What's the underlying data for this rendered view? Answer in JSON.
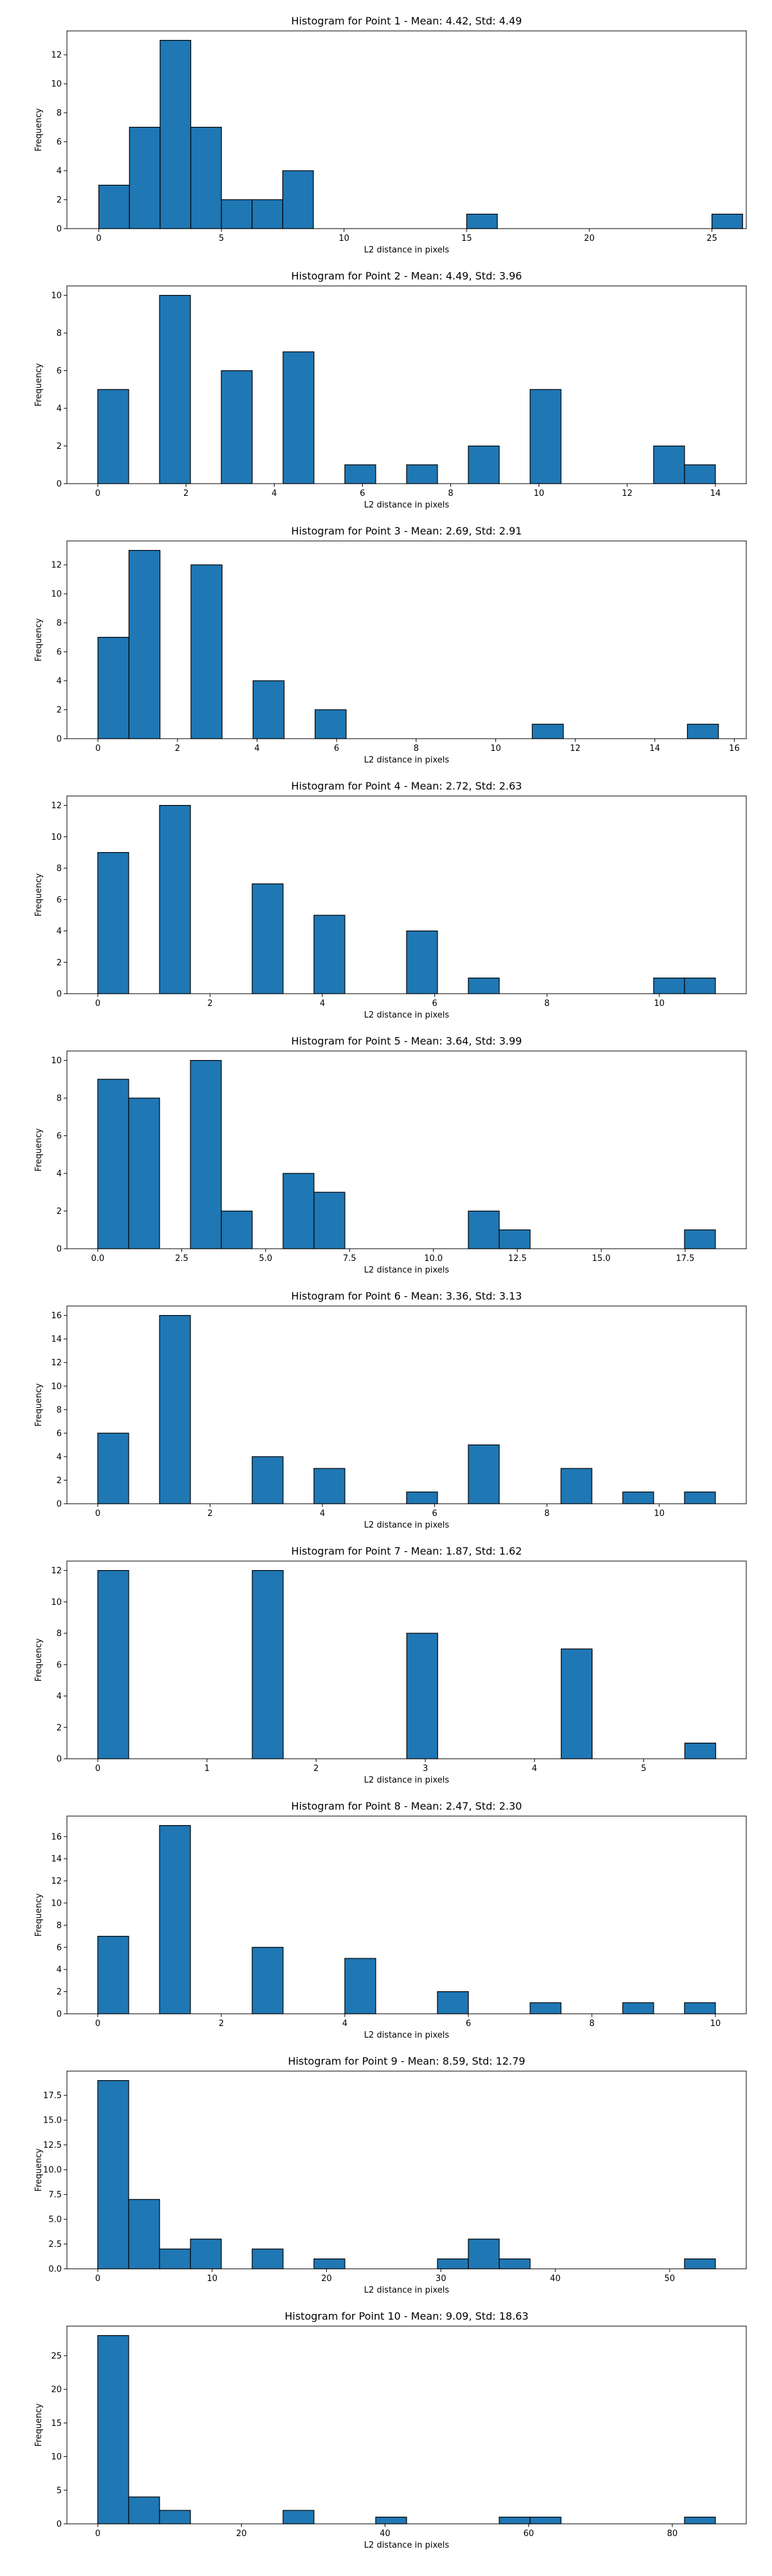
{
  "chart_data": [
    {
      "type": "bar",
      "title": "Histogram for Point 1 - Mean: 4.42, Std: 4.49",
      "xlabel": "L2 distance in pixels",
      "ylabel": "Frequency",
      "xlim": [
        -1.3,
        26.4
      ],
      "ylim": [
        0,
        13.65
      ],
      "xticks": [
        0,
        5,
        10,
        15,
        20,
        25
      ],
      "xtick_labels": [
        "0",
        "5",
        "10",
        "15",
        "20",
        "25"
      ],
      "yticks": [
        0,
        2,
        4,
        6,
        8,
        10,
        12
      ],
      "ytick_labels": [
        "0",
        "2",
        "4",
        "6",
        "8",
        "10",
        "12"
      ],
      "bin_edges": [
        0,
        1.25,
        2.5,
        3.75,
        5.0,
        6.25,
        7.5,
        8.75,
        10.0,
        11.25,
        12.5,
        13.75,
        15.0,
        16.25,
        17.5,
        18.75,
        20.0,
        21.25,
        22.5,
        23.75,
        25.0,
        26.25
      ],
      "values": [
        3,
        7,
        13,
        7,
        2,
        2,
        4,
        0,
        0,
        0,
        0,
        0,
        1,
        0,
        0,
        0,
        0,
        0,
        0,
        0,
        1
      ],
      "grid": false,
      "bar_color": "#1f77b4",
      "edge_color": "#000000"
    },
    {
      "type": "bar",
      "title": "Histogram for Point 2 - Mean: 4.49, Std: 3.96",
      "xlabel": "L2 distance in pixels",
      "ylabel": "Frequency",
      "xlim": [
        -0.7,
        14.7
      ],
      "ylim": [
        0,
        10.5
      ],
      "xticks": [
        0,
        2,
        4,
        6,
        8,
        10,
        12,
        14
      ],
      "xtick_labels": [
        "0",
        "2",
        "4",
        "6",
        "8",
        "10",
        "12",
        "14"
      ],
      "yticks": [
        0,
        2,
        4,
        6,
        8,
        10
      ],
      "ytick_labels": [
        "0",
        "2",
        "4",
        "6",
        "8",
        "10"
      ],
      "bin_edges": [
        0,
        0.7,
        1.4,
        2.1,
        2.8,
        3.5,
        4.2,
        4.9,
        5.6,
        6.3,
        7.0,
        7.7,
        8.4,
        9.1,
        9.8,
        10.5,
        11.2,
        11.9,
        12.6,
        13.3,
        14.0
      ],
      "values": [
        5,
        0,
        10,
        0,
        6,
        0,
        7,
        0,
        1,
        0,
        1,
        0,
        2,
        0,
        5,
        0,
        0,
        0,
        2,
        1
      ],
      "grid": false,
      "bar_color": "#1f77b4",
      "edge_color": "#000000"
    },
    {
      "type": "bar",
      "title": "Histogram for Point 3 - Mean: 2.69, Std: 2.91",
      "xlabel": "L2 distance in pixels",
      "ylabel": "Frequency",
      "xlim": [
        -0.78,
        16.3
      ],
      "ylim": [
        0,
        13.65
      ],
      "xticks": [
        0,
        2,
        4,
        6,
        8,
        10,
        12,
        14,
        16
      ],
      "xtick_labels": [
        "0",
        "2",
        "4",
        "6",
        "8",
        "10",
        "12",
        "14",
        "16"
      ],
      "yticks": [
        0,
        2,
        4,
        6,
        8,
        10,
        12
      ],
      "ytick_labels": [
        "0",
        "2",
        "4",
        "6",
        "8",
        "10",
        "12"
      ],
      "bin_edges": [
        0,
        0.78,
        1.56,
        2.34,
        3.12,
        3.9,
        4.68,
        5.46,
        6.24,
        7.02,
        7.8,
        8.58,
        9.36,
        10.14,
        10.92,
        11.7,
        12.48,
        13.26,
        14.04,
        14.82,
        15.6
      ],
      "values": [
        7,
        13,
        0,
        12,
        0,
        4,
        0,
        2,
        0,
        0,
        0,
        0,
        0,
        0,
        1,
        0,
        0,
        0,
        0,
        1
      ],
      "grid": false,
      "bar_color": "#1f77b4",
      "edge_color": "#000000"
    },
    {
      "type": "bar",
      "title": "Histogram for Point 4 - Mean: 2.72, Std: 2.63",
      "xlabel": "L2 distance in pixels",
      "ylabel": "Frequency",
      "xlim": [
        -0.55,
        11.55
      ],
      "ylim": [
        0,
        12.6
      ],
      "xticks": [
        0,
        2,
        4,
        6,
        8,
        10
      ],
      "xtick_labels": [
        "0",
        "2",
        "4",
        "6",
        "8",
        "10"
      ],
      "yticks": [
        0,
        2,
        4,
        6,
        8,
        10,
        12
      ],
      "ytick_labels": [
        "0",
        "2",
        "4",
        "6",
        "8",
        "10",
        "12"
      ],
      "bin_edges": [
        0,
        0.55,
        1.1,
        1.65,
        2.2,
        2.75,
        3.3,
        3.85,
        4.4,
        4.95,
        5.5,
        6.05,
        6.6,
        7.15,
        7.7,
        8.25,
        8.8,
        9.35,
        9.9,
        10.45,
        11.0
      ],
      "values": [
        9,
        0,
        12,
        0,
        0,
        7,
        0,
        5,
        0,
        0,
        4,
        0,
        1,
        0,
        0,
        0,
        0,
        0,
        1,
        1
      ],
      "grid": false,
      "bar_color": "#1f77b4",
      "edge_color": "#000000"
    },
    {
      "type": "bar",
      "title": "Histogram for Point 5 - Mean: 3.64, Std: 3.99",
      "xlabel": "L2 distance in pixels",
      "ylabel": "Frequency",
      "xlim": [
        -0.92,
        19.32
      ],
      "ylim": [
        0,
        10.5
      ],
      "xticks": [
        0,
        2.5,
        5,
        7.5,
        10,
        12.5,
        15,
        17.5
      ],
      "xtick_labels": [
        "0.0",
        "2.5",
        "5.0",
        "7.5",
        "10.0",
        "12.5",
        "15.0",
        "17.5"
      ],
      "yticks": [
        0,
        2,
        4,
        6,
        8,
        10
      ],
      "ytick_labels": [
        "0",
        "2",
        "4",
        "6",
        "8",
        "10"
      ],
      "bin_edges": [
        0,
        0.92,
        1.84,
        2.76,
        3.68,
        4.6,
        5.52,
        6.44,
        7.36,
        8.28,
        9.2,
        10.12,
        11.04,
        11.96,
        12.88,
        13.8,
        14.72,
        15.64,
        16.56,
        17.48,
        18.4
      ],
      "values": [
        9,
        8,
        0,
        10,
        2,
        0,
        4,
        3,
        0,
        0,
        0,
        0,
        2,
        1,
        0,
        0,
        0,
        0,
        0,
        1
      ],
      "grid": false,
      "bar_color": "#1f77b4",
      "edge_color": "#000000"
    },
    {
      "type": "bar",
      "title": "Histogram for Point 6 - Mean: 3.36, Std: 3.13",
      "xlabel": "L2 distance in pixels",
      "ylabel": "Frequency",
      "xlim": [
        -0.55,
        11.55
      ],
      "ylim": [
        0,
        16.8
      ],
      "xticks": [
        0,
        2,
        4,
        6,
        8,
        10
      ],
      "xtick_labels": [
        "0",
        "2",
        "4",
        "6",
        "8",
        "10"
      ],
      "yticks": [
        0,
        2,
        4,
        6,
        8,
        10,
        12,
        14,
        16
      ],
      "ytick_labels": [
        "0",
        "2",
        "4",
        "6",
        "8",
        "10",
        "12",
        "14",
        "16"
      ],
      "bin_edges": [
        0,
        0.55,
        1.1,
        1.65,
        2.2,
        2.75,
        3.3,
        3.85,
        4.4,
        4.95,
        5.5,
        6.05,
        6.6,
        7.15,
        7.7,
        8.25,
        8.8,
        9.35,
        9.9,
        10.45,
        11.0
      ],
      "values": [
        6,
        0,
        16,
        0,
        0,
        4,
        0,
        3,
        0,
        0,
        1,
        0,
        5,
        0,
        0,
        3,
        0,
        1,
        0,
        1
      ],
      "grid": false,
      "bar_color": "#1f77b4",
      "edge_color": "#000000"
    },
    {
      "type": "bar",
      "title": "Histogram for Point 7 - Mean: 1.87, Std: 1.62",
      "xlabel": "L2 distance in pixels",
      "ylabel": "Frequency",
      "xlim": [
        -0.283,
        5.94
      ],
      "ylim": [
        0,
        12.6
      ],
      "xticks": [
        0,
        1,
        2,
        3,
        4,
        5
      ],
      "xtick_labels": [
        "0",
        "1",
        "2",
        "3",
        "4",
        "5"
      ],
      "yticks": [
        0,
        2,
        4,
        6,
        8,
        10,
        12
      ],
      "ytick_labels": [
        "0",
        "2",
        "4",
        "6",
        "8",
        "10",
        "12"
      ],
      "bin_edges": [
        0,
        0.283,
        0.566,
        0.849,
        1.132,
        1.415,
        1.698,
        1.981,
        2.264,
        2.547,
        2.83,
        3.113,
        3.396,
        3.679,
        3.962,
        4.245,
        4.528,
        4.811,
        5.094,
        5.377,
        5.66
      ],
      "values": [
        12,
        0,
        0,
        0,
        0,
        12,
        0,
        0,
        0,
        0,
        8,
        0,
        0,
        0,
        0,
        7,
        0,
        0,
        0,
        1
      ],
      "grid": false,
      "bar_color": "#1f77b4",
      "edge_color": "#000000"
    },
    {
      "type": "bar",
      "title": "Histogram for Point 8 - Mean: 2.47, Std: 2.30",
      "xlabel": "L2 distance in pixels",
      "ylabel": "Frequency",
      "xlim": [
        -0.5,
        10.5
      ],
      "ylim": [
        0,
        17.85
      ],
      "xticks": [
        0,
        2,
        4,
        6,
        8,
        10
      ],
      "xtick_labels": [
        "0",
        "2",
        "4",
        "6",
        "8",
        "10"
      ],
      "yticks": [
        0,
        2,
        4,
        6,
        8,
        10,
        12,
        14,
        16
      ],
      "ytick_labels": [
        "0",
        "2",
        "4",
        "6",
        "8",
        "10",
        "12",
        "14",
        "16"
      ],
      "bin_edges": [
        0,
        0.5,
        1.0,
        1.5,
        2.0,
        2.5,
        3.0,
        3.5,
        4.0,
        4.5,
        5.0,
        5.5,
        6.0,
        6.5,
        7.0,
        7.5,
        8.0,
        8.5,
        9.0,
        9.5,
        10.0
      ],
      "values": [
        7,
        0,
        17,
        0,
        0,
        6,
        0,
        0,
        5,
        0,
        0,
        2,
        0,
        0,
        1,
        0,
        0,
        1,
        0,
        1
      ],
      "grid": false,
      "bar_color": "#1f77b4",
      "edge_color": "#000000"
    },
    {
      "type": "bar",
      "title": "Histogram for Point 9 - Mean: 8.59, Std: 12.79",
      "xlabel": "L2 distance in pixels",
      "ylabel": "Frequency",
      "xlim": [
        -2.7,
        56.7
      ],
      "ylim": [
        0,
        19.95
      ],
      "xticks": [
        0,
        10,
        20,
        30,
        40,
        50
      ],
      "xtick_labels": [
        "0",
        "10",
        "20",
        "30",
        "40",
        "50"
      ],
      "yticks": [
        0,
        2.5,
        5,
        7.5,
        10,
        12.5,
        15,
        17.5
      ],
      "ytick_labels": [
        "0.0",
        "2.5",
        "5.0",
        "7.5",
        "10.0",
        "12.5",
        "15.0",
        "17.5"
      ],
      "bin_edges": [
        0,
        2.7,
        5.4,
        8.1,
        10.8,
        13.5,
        16.2,
        18.9,
        21.6,
        24.3,
        27.0,
        29.7,
        32.4,
        35.1,
        37.8,
        40.5,
        43.2,
        45.9,
        48.6,
        51.3,
        54.0
      ],
      "values": [
        19,
        7,
        2,
        3,
        0,
        2,
        0,
        1,
        0,
        0,
        0,
        1,
        3,
        1,
        0,
        0,
        0,
        0,
        0,
        1
      ],
      "grid": false,
      "bar_color": "#1f77b4",
      "edge_color": "#000000"
    },
    {
      "type": "bar",
      "title": "Histogram for Point 10 - Mean: 9.09, Std: 18.63",
      "xlabel": "L2 distance in pixels",
      "ylabel": "Frequency",
      "xlim": [
        -4.3,
        90.3
      ],
      "ylim": [
        0,
        29.4
      ],
      "xticks": [
        0,
        20,
        40,
        60,
        80
      ],
      "xtick_labels": [
        "0",
        "20",
        "40",
        "60",
        "80"
      ],
      "yticks": [
        0,
        5,
        10,
        15,
        20,
        25
      ],
      "ytick_labels": [
        "0",
        "5",
        "10",
        "15",
        "20",
        "25"
      ],
      "bin_edges": [
        0,
        4.3,
        8.6,
        12.9,
        17.2,
        21.5,
        25.8,
        30.1,
        34.4,
        38.7,
        43.0,
        47.3,
        51.6,
        55.9,
        60.2,
        64.5,
        68.8,
        73.1,
        77.4,
        81.7,
        86.0
      ],
      "values": [
        28,
        4,
        2,
        0,
        0,
        0,
        2,
        0,
        0,
        1,
        0,
        0,
        0,
        1,
        1,
        0,
        0,
        0,
        0,
        1
      ],
      "grid": false,
      "bar_color": "#1f77b4",
      "edge_color": "#000000"
    }
  ]
}
